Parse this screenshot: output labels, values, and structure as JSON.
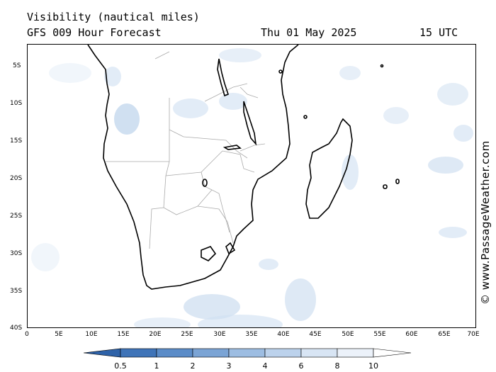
{
  "header": {
    "title": "Visibility (nautical miles)",
    "model": "GFS 009 Hour Forecast",
    "date": "Thu 01 May 2025",
    "time": "15 UTC"
  },
  "watermark": "© www.PassageWeather.com",
  "axes": {
    "lat_labels": [
      "5S",
      "10S",
      "15S",
      "20S",
      "25S",
      "30S",
      "35S",
      "40S"
    ],
    "lon_labels": [
      "0",
      "5E",
      "10E",
      "15E",
      "20E",
      "25E",
      "30E",
      "35E",
      "40E",
      "45E",
      "50E",
      "55E",
      "60E",
      "65E",
      "70E"
    ]
  },
  "colorbar": {
    "labels": [
      "0.5",
      "1",
      "2",
      "3",
      "4",
      "6",
      "8",
      "10"
    ],
    "colors": [
      "#3f74b8",
      "#5b8cc8",
      "#7ba4d5",
      "#9dbde2",
      "#bcd2ec",
      "#d8e5f4",
      "#ecf2fa",
      "#ffffff"
    ]
  },
  "colors": {
    "coast": "#000000",
    "border": "#aaaaaa",
    "haze": "#a9c6e6"
  }
}
